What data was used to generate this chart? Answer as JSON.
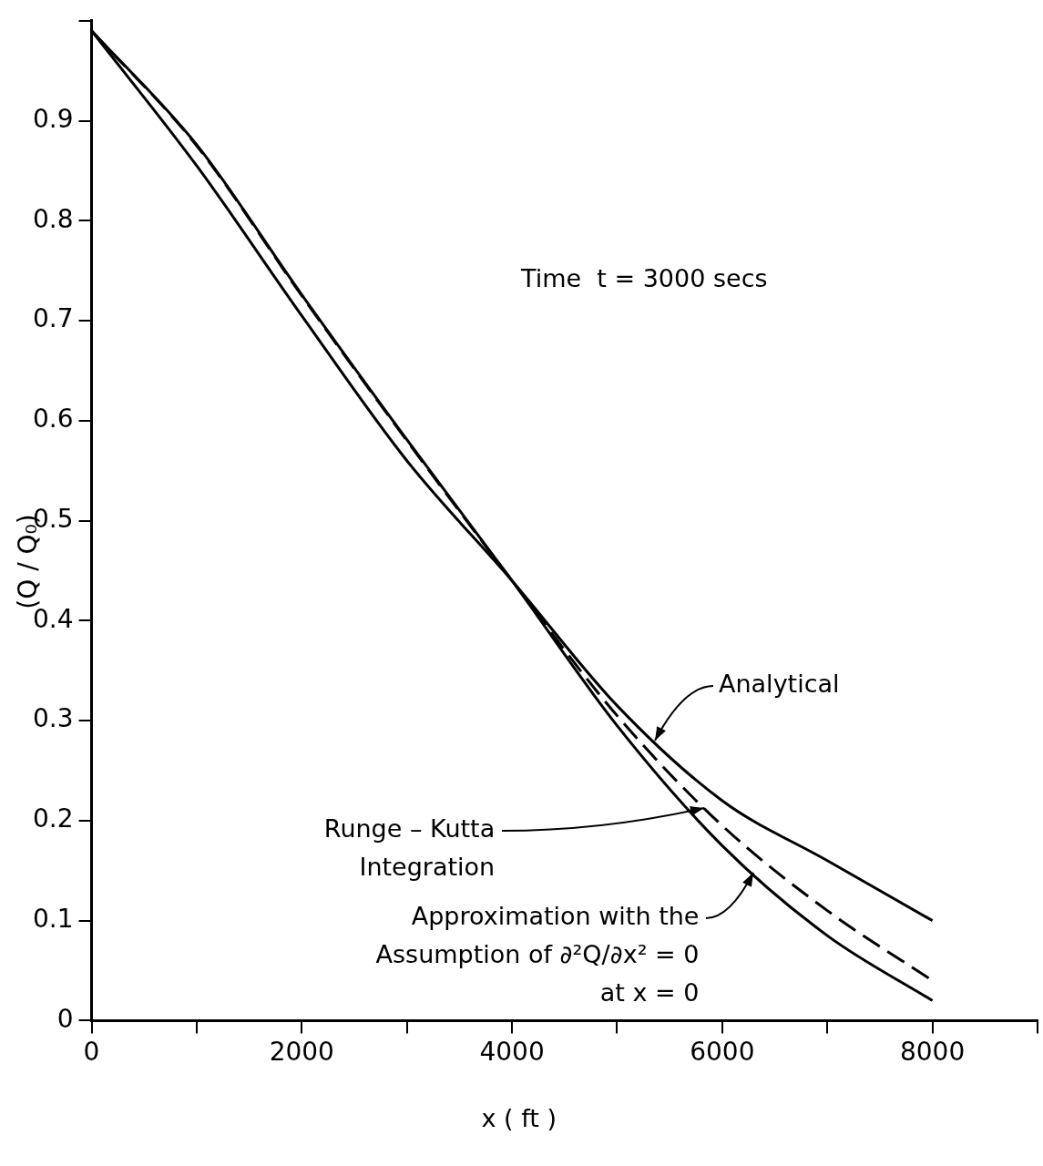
{
  "chart_data": {
    "type": "line",
    "xlabel": "x ( ft )",
    "ylabel": "(Q / Q₀)",
    "xlim": [
      0,
      9000
    ],
    "ylim": [
      0,
      1.0
    ],
    "xticks": [
      0,
      {
        "value": 1000,
        "label": null
      },
      2000,
      {
        "value": 3000,
        "label": null
      },
      4000,
      {
        "value": 5000,
        "label": null
      },
      6000,
      {
        "value": 7000,
        "label": null
      },
      8000,
      {
        "value": 9000,
        "label": null
      }
    ],
    "yticks": [
      0,
      0.1,
      0.2,
      0.3,
      0.4,
      0.5,
      0.6,
      0.7,
      0.8,
      0.9,
      {
        "value": 1.0,
        "label": null
      }
    ],
    "grid": false,
    "legend": false,
    "marker": "none",
    "x": [
      0,
      1000,
      2000,
      3000,
      4000,
      5000,
      6000,
      7000,
      8000
    ],
    "series": [
      {
        "color": "#000000",
        "line_style": "solid",
        "values": [
          0.99,
          0.855,
          0.705,
          0.56,
          0.44,
          0.315,
          0.22,
          0.16,
          0.1
        ]
      },
      {
        "color": "#000000",
        "line_style": "dashed",
        "values": [
          0.99,
          0.875,
          0.725,
          0.58,
          0.44,
          0.305,
          0.195,
          0.11,
          0.04
        ]
      },
      {
        "color": "#000000",
        "line_style": "solid",
        "values": [
          0.99,
          0.876,
          0.726,
          0.581,
          0.44,
          0.295,
          0.175,
          0.085,
          0.02
        ]
      }
    ],
    "annotations": [
      "Time  t = 3000 secs",
      {
        "text": "Analytical",
        "x": 5360,
        "y": 0.28
      },
      {
        "text": "Runge – Kutta Integration",
        "x": 5830,
        "y": 0.213
      },
      {
        "text": "Approximation with the Assumption of ∂²Q/∂x² = 0 at x = 0",
        "x": 6300,
        "y": 0.148
      }
    ]
  }
}
